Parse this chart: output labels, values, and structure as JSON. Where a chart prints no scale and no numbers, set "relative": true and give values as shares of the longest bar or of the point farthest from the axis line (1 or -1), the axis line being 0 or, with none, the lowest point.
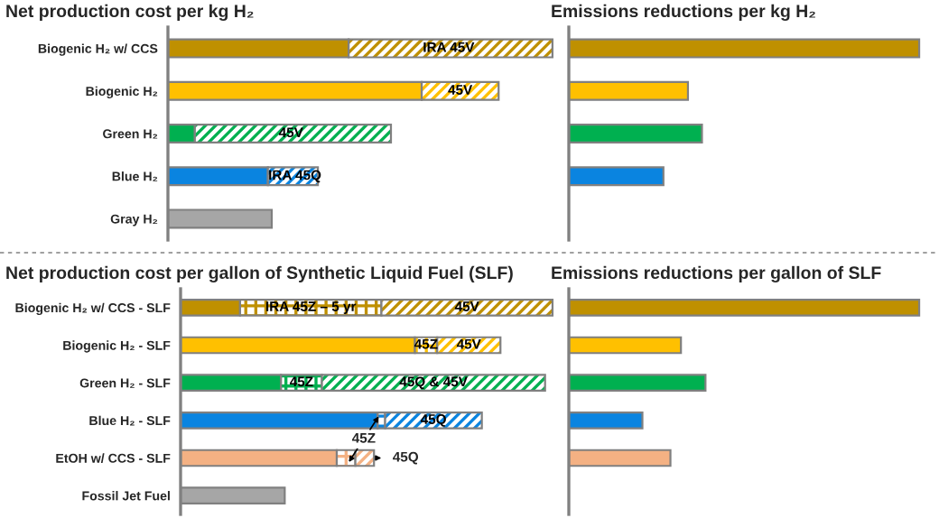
{
  "chart_data": [
    {
      "type": "bar",
      "orientation": "horizontal",
      "stacked": true,
      "relative": true,
      "title": "Net production cost per kg H₂",
      "tick_labels": "y",
      "grid": false,
      "legend": false,
      "categories": [
        "Biogenic H₂ w/ CCS",
        "Biogenic H₂",
        "Green H₂",
        "Blue H₂",
        "Gray H₂"
      ],
      "series": [
        {
          "colors": [
            "#bf9000",
            "#ffc000",
            "#00b050",
            "#0a84e0",
            "#a6a6a6"
          ],
          "values": [
            0.47,
            0.66,
            0.07,
            0.26,
            0.27
          ]
        },
        {
          "colors": [
            "#bf9000",
            "#ffc000",
            "#00b050",
            "#0a84e0",
            "#a6a6a6"
          ],
          "values": [
            0.53,
            0.2,
            0.51,
            0.13,
            null
          ]
        }
      ],
      "annotations": [
        {
          "text": "IRA 45V",
          "x": 0.73,
          "y": "Biogenic H₂ w/ CCS"
        },
        {
          "text": "45V",
          "x": 0.76,
          "y": "Biogenic H₂"
        },
        {
          "text": "45V",
          "x": 0.32,
          "y": "Green H₂"
        },
        {
          "text": "IRA 45Q",
          "x": 0.33,
          "y": "Blue H₂"
        }
      ]
    },
    {
      "type": "bar",
      "orientation": "horizontal",
      "relative": true,
      "title": "Emissions reductions per kg H₂",
      "tick_labels": false,
      "grid": false,
      "legend": false,
      "categories": [
        null,
        null,
        null,
        null,
        null
      ],
      "colors": [
        "#bf9000",
        "#ffc000",
        "#00b050",
        "#0a84e0",
        "#a6a6a6"
      ],
      "values": [
        1,
        0.34,
        0.38,
        0.27,
        null
      ]
    },
    {
      "type": "bar",
      "orientation": "horizontal",
      "stacked": true,
      "relative": true,
      "title": "Net production cost per gallon of Synthetic Liquid Fuel (SLF)",
      "tick_labels": "y",
      "grid": false,
      "legend": false,
      "categories": [
        "Biogenic H₂ w/ CCS - SLF",
        "Biogenic H₂ - SLF",
        "Green H₂ - SLF",
        "Blue H₂ - SLF",
        "EtOH w/ CCS - SLF",
        "Fossil Jet Fuel"
      ],
      "series": [
        {
          "colors": [
            "#bf9000",
            "#ffc000",
            "#00b050",
            "#0a84e0",
            "#f4b183",
            "#a6a6a6"
          ],
          "values": [
            0.16,
            0.63,
            0.27,
            0.53,
            0.42,
            0.28
          ]
        },
        {
          "colors": [
            "#bf9000",
            "#ffc000",
            "#00b050",
            "#0a84e0",
            "#f4b183",
            "#a6a6a6"
          ],
          "values": [
            0.38,
            0.06,
            0.11,
            0.02,
            0.05,
            null
          ]
        },
        {
          "colors": [
            "#bf9000",
            "#ffc000",
            "#00b050",
            "#0a84e0",
            "#f4b183",
            "#a6a6a6"
          ],
          "values": [
            0.46,
            0.17,
            0.6,
            0.26,
            0.05,
            null
          ]
        }
      ],
      "annotations": [
        {
          "text": "IRA 45Z – 5 yr",
          "x": 0.35,
          "y": "Biogenic H₂ w/ CCS - SLF"
        },
        {
          "text": "45Z",
          "x": 0.66,
          "y": "Biogenic H₂ - SLF"
        },
        {
          "text": "45Z",
          "x": 0.325,
          "y": "Green H₂ - SLF"
        },
        {
          "text": "45V",
          "x": 0.77,
          "y": "Biogenic H₂ w/ CCS - SLF"
        },
        {
          "text": "45V",
          "x": 0.775,
          "y": "Biogenic H₂ - SLF"
        },
        {
          "text": "45Q & 45V",
          "x": 0.68,
          "y": "Green H₂ - SLF"
        },
        {
          "text": "45Q",
          "x": 0.68,
          "y": "Blue H₂ - SLF"
        },
        "45Z",
        "45Q"
      ]
    },
    {
      "type": "bar",
      "orientation": "horizontal",
      "relative": true,
      "title": "Emissions reductions per gallon of SLF",
      "tick_labels": false,
      "grid": false,
      "legend": false,
      "categories": [
        null,
        null,
        null,
        null,
        null,
        null
      ],
      "colors": [
        "#bf9000",
        "#ffc000",
        "#00b050",
        "#0a84e0",
        "#f4b183",
        "#a6a6a6"
      ],
      "values": [
        1,
        0.32,
        0.39,
        0.21,
        0.29,
        null
      ]
    }
  ]
}
